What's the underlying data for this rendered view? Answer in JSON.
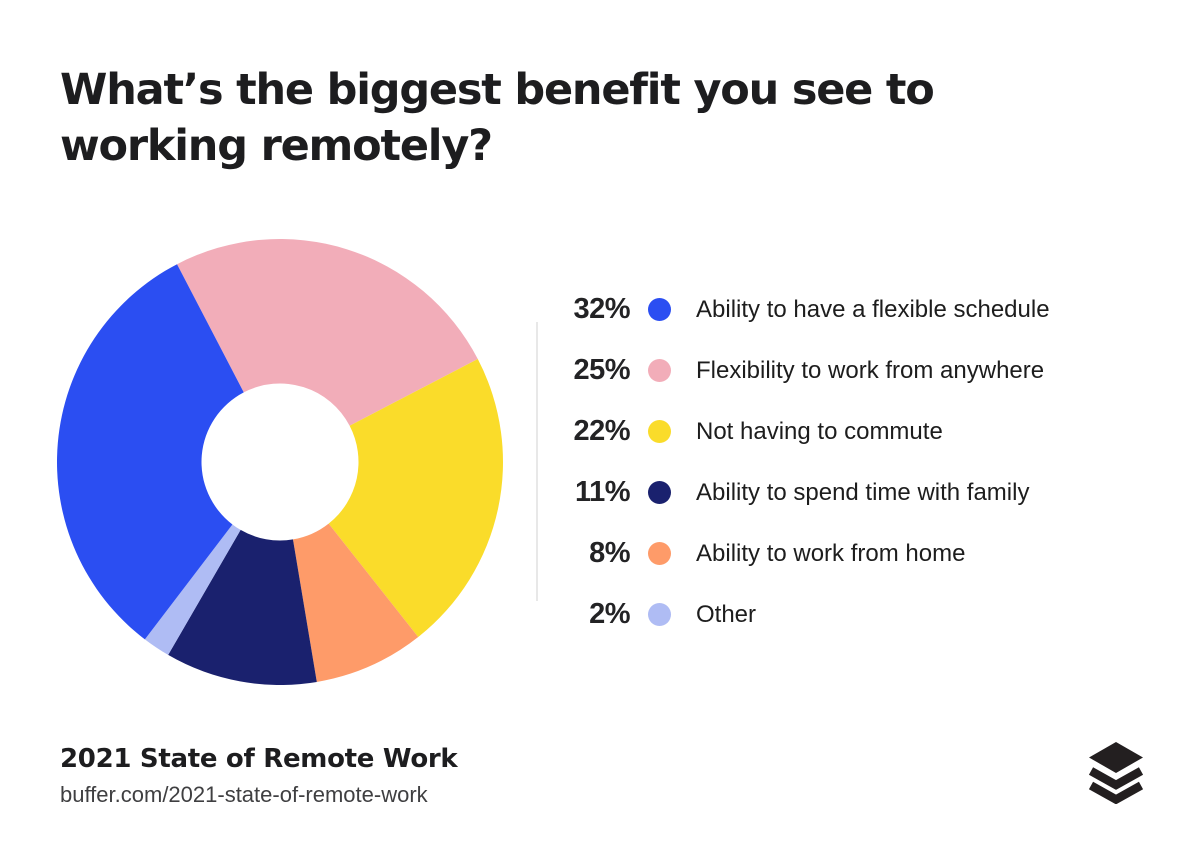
{
  "title": {
    "line1": "What’s the biggest benefit you see to",
    "line2": "working remotely?"
  },
  "chart_data": {
    "type": "pie",
    "donut": true,
    "title": "What’s the biggest benefit you see to working remotely?",
    "legend_position": "right",
    "start_angle_deg": -27.5,
    "inner_radius_ratio": 0.352,
    "draw_order": [
      1,
      2,
      4,
      3,
      5,
      0
    ],
    "segments": [
      {
        "label": "Ability to have a flexible schedule",
        "value": 32,
        "percent_label": "32%",
        "color": "#2b4ef2"
      },
      {
        "label": "Flexibility to work from anywhere",
        "value": 25,
        "percent_label": "25%",
        "color": "#f2adb9"
      },
      {
        "label": "Not having to commute",
        "value": 22,
        "percent_label": "22%",
        "color": "#fadc2a"
      },
      {
        "label": "Ability to spend time with family",
        "value": 11,
        "percent_label": "11%",
        "color": "#1a216e"
      },
      {
        "label": "Ability to work from home",
        "value": 8,
        "percent_label": "8%",
        "color": "#fe9b69"
      },
      {
        "label": "Other",
        "value": 2,
        "percent_label": "2%",
        "color": "#afbcf4"
      }
    ]
  },
  "footer": {
    "source_title": "2021 State of Remote Work",
    "source_url": "buffer.com/2021-state-of-remote-work"
  },
  "logo": {
    "name": "buffer-logo",
    "color": "#231f20"
  },
  "colors": {
    "background": "#ffffff",
    "text_dark": "#1d1d1f",
    "divider": "#e8e8e8"
  }
}
